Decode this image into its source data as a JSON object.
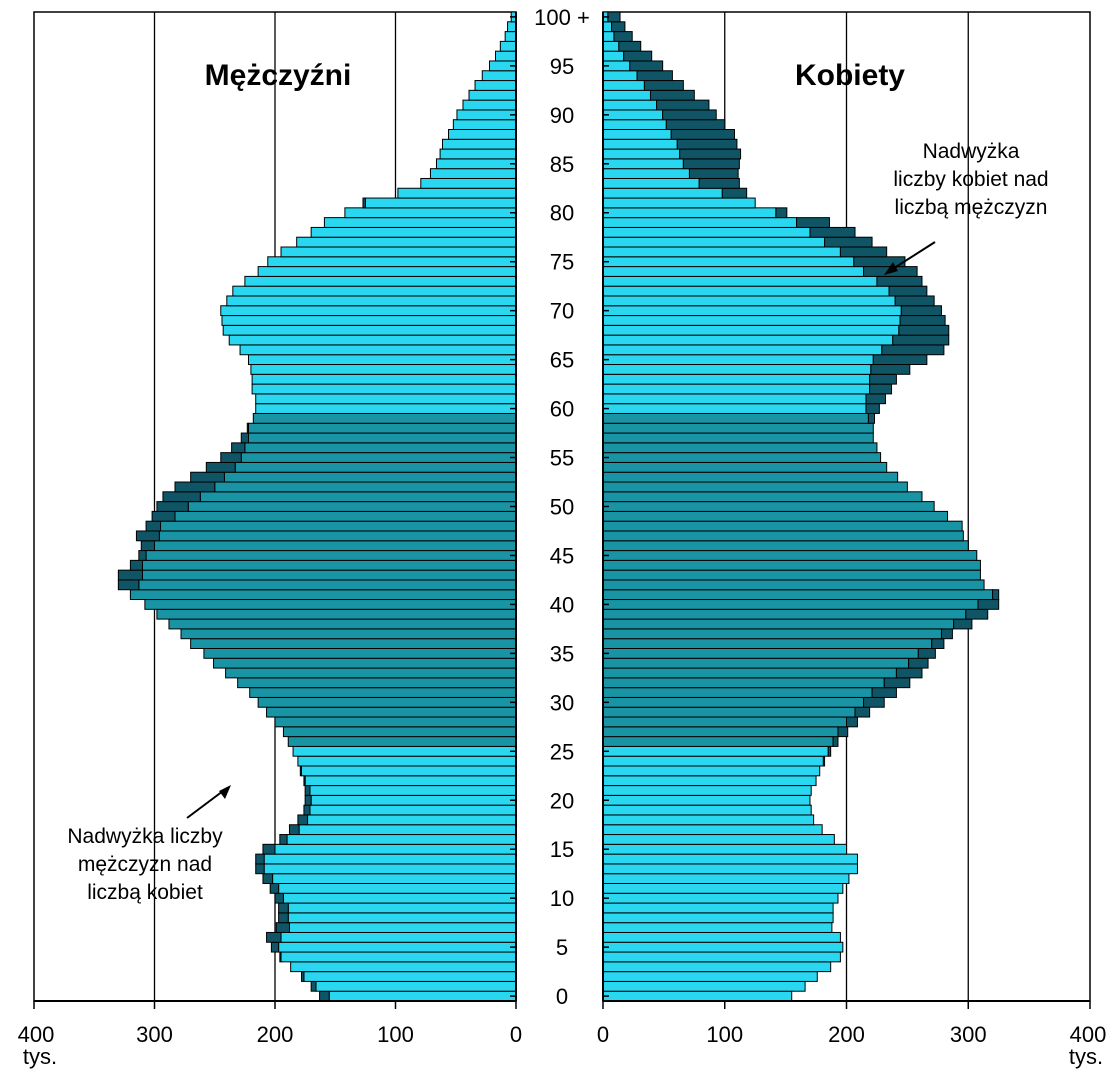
{
  "chart_data": {
    "type": "bar",
    "orientation": "horizontal-population-pyramid",
    "panels": {
      "left": {
        "title": "Mężczyźni",
        "xlim": [
          0,
          400
        ],
        "direction": "reversed"
      },
      "right": {
        "title": "Kobiety",
        "xlim": [
          0,
          400
        ],
        "direction": "normal"
      }
    },
    "x_ticks": [
      0,
      100,
      200,
      300,
      400
    ],
    "x_unit": "tys.",
    "age_labels": [
      "0",
      "5",
      "10",
      "15",
      "20",
      "25",
      "30",
      "35",
      "40",
      "45",
      "50",
      "55",
      "60",
      "65",
      "70",
      "75",
      "80",
      "85",
      "90",
      "95",
      "100 +"
    ],
    "ages_order": "0 to 100+ (one-year age groups)",
    "series": [
      {
        "name": "Mężczyźni",
        "values": [
          163,
          170,
          178,
          187,
          196,
          203,
          207,
          199,
          197,
          197,
          200,
          204,
          210,
          216,
          216,
          210,
          196,
          188,
          181,
          176,
          175,
          175,
          176,
          179,
          181,
          185,
          189,
          193,
          200,
          207,
          214,
          221,
          231,
          241,
          251,
          259,
          270,
          278,
          288,
          298,
          308,
          320,
          330,
          330,
          320,
          313,
          311,
          315,
          307,
          302,
          298,
          293,
          283,
          270,
          257,
          245,
          236,
          228,
          223,
          218,
          216,
          216,
          219,
          219,
          220,
          222,
          229,
          238,
          243,
          244,
          245,
          240,
          235,
          225,
          214,
          206,
          195,
          182,
          170,
          159,
          142,
          127,
          98,
          79,
          71,
          66,
          63,
          61,
          56,
          52,
          49,
          44,
          39,
          34,
          28,
          22,
          17,
          13,
          9,
          7,
          4
        ]
      },
      {
        "name": "Kobiety",
        "values": [
          155,
          166,
          176,
          187,
          195,
          197,
          195,
          188,
          189,
          189,
          193,
          197,
          202,
          209,
          209,
          200,
          190,
          180,
          173,
          171,
          170,
          171,
          175,
          178,
          182,
          187,
          193,
          201,
          209,
          219,
          231,
          241,
          252,
          262,
          267,
          273,
          280,
          287,
          303,
          316,
          325,
          325,
          313,
          310,
          310,
          307,
          300,
          296,
          295,
          283,
          272,
          262,
          250,
          242,
          233,
          228,
          225,
          222,
          222,
          223,
          227,
          232,
          237,
          241,
          252,
          266,
          280,
          284,
          284,
          281,
          278,
          272,
          266,
          262,
          258,
          248,
          233,
          221,
          207,
          186,
          151,
          125,
          118,
          112,
          111,
          112,
          113,
          110,
          108,
          100,
          93,
          87,
          75,
          66,
          57,
          49,
          40,
          31,
          24,
          18,
          14
        ]
      }
    ],
    "annotations": {
      "women_surplus": "Nadwyżka\nliczby kobiet nad\nliczbą mężczyzn",
      "men_surplus": "Nadwyżka liczby\nmężczyzn nad\nliczbą kobiet"
    },
    "colors": {
      "light": "#29d8f0",
      "medium": "#1894a4",
      "surplus": "#0f5566",
      "outline": "#000000",
      "gridline": "#000000"
    },
    "color_rule": "ages 0-25 light, 26-59 medium, 60+ light; the difference between men and women shown in dark surplus color on the larger side",
    "grid": true,
    "legend": "none"
  }
}
